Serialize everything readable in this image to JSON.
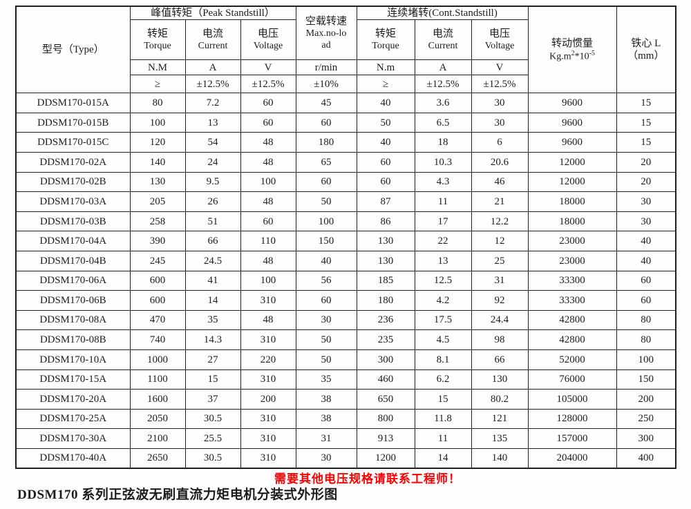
{
  "table": {
    "type_header": "型号（Type）",
    "groups": {
      "peak": "峰值转矩（Peak Standstill）",
      "noload": [
        "空载转速",
        "Max.no-lo",
        "ad"
      ],
      "cont": "连续堵转(Cont.Standstill)",
      "inertia_title": "转动惯量",
      "inertia_unit_parts": [
        "Kg.m",
        "2",
        "*10",
        "-5"
      ],
      "core": [
        "铁心 L",
        "（mm）"
      ]
    },
    "subheaders": {
      "torque": {
        "cn": "转矩",
        "en": "Torque"
      },
      "current": {
        "cn": "电流",
        "en": "Current"
      },
      "voltage": {
        "cn": "电压",
        "en": "Voltage"
      }
    },
    "units": [
      "N.M",
      "A",
      "V",
      "r/min",
      "N.m",
      "A",
      "V"
    ],
    "tolerances": [
      "≥",
      "±12.5%",
      "±12.5%",
      "±10%",
      "≥",
      "±12.5%",
      "±12.5%"
    ],
    "rows": [
      [
        "DDSM170-015A",
        "80",
        "7.2",
        "60",
        "45",
        "40",
        "3.6",
        "30",
        "9600",
        "15"
      ],
      [
        "DDSM170-015B",
        "100",
        "13",
        "60",
        "60",
        "50",
        "6.5",
        "30",
        "9600",
        "15"
      ],
      [
        "DDSM170-015C",
        "120",
        "54",
        "48",
        "180",
        "40",
        "18",
        "6",
        "9600",
        "15"
      ],
      [
        "DDSM170-02A",
        "140",
        "24",
        "48",
        "65",
        "60",
        "10.3",
        "20.6",
        "12000",
        "20"
      ],
      [
        "DDSM170-02B",
        "130",
        "9.5",
        "100",
        "60",
        "60",
        "4.3",
        "46",
        "12000",
        "20"
      ],
      [
        "DDSM170-03A",
        "205",
        "26",
        "48",
        "50",
        "87",
        "11",
        "21",
        "18000",
        "30"
      ],
      [
        "DDSM170-03B",
        "258",
        "51",
        "60",
        "100",
        "86",
        "17",
        "12.2",
        "18000",
        "30"
      ],
      [
        "DDSM170-04A",
        "390",
        "66",
        "110",
        "150",
        "130",
        "22",
        "12",
        "23000",
        "40"
      ],
      [
        "DDSM170-04B",
        "245",
        "24.5",
        "48",
        "40",
        "130",
        "13",
        "25",
        "23000",
        "40"
      ],
      [
        "DDSM170-06A",
        "600",
        "41",
        "100",
        "56",
        "185",
        "12.5",
        "31",
        "33300",
        "60"
      ],
      [
        "DDSM170-06B",
        "600",
        "14",
        "310",
        "60",
        "180",
        "4.2",
        "92",
        "33300",
        "60"
      ],
      [
        "DDSM170-08A",
        "470",
        "35",
        "48",
        "30",
        "236",
        "17.5",
        "24.4",
        "42800",
        "80"
      ],
      [
        "DDSM170-08B",
        "740",
        "14.3",
        "310",
        "50",
        "235",
        "4.5",
        "98",
        "42800",
        "80"
      ],
      [
        "DDSM170-10A",
        "1000",
        "27",
        "220",
        "50",
        "300",
        "8.1",
        "66",
        "52000",
        "100"
      ],
      [
        "DDSM170-15A",
        "1100",
        "15",
        "310",
        "35",
        "460",
        "6.2",
        "130",
        "76000",
        "150"
      ],
      [
        "DDSM170-20A",
        "1600",
        "37",
        "200",
        "38",
        "650",
        "15",
        "80.2",
        "105000",
        "200"
      ],
      [
        "DDSM170-25A",
        "2050",
        "30.5",
        "310",
        "38",
        "800",
        "11.8",
        "121",
        "128000",
        "250"
      ],
      [
        "DDSM170-30A",
        "2100",
        "25.5",
        "310",
        "31",
        "913",
        "11",
        "135",
        "157000",
        "300"
      ],
      [
        "DDSM170-40A",
        "2650",
        "30.5",
        "310",
        "30",
        "1200",
        "14",
        "140",
        "204000",
        "400"
      ]
    ]
  },
  "footer": {
    "notice": "需要其他电压规格请联系工程师！",
    "notice_color": "#ff0000",
    "caption": "DDSM170 系列正弦波无刷直流力矩电机分装式外形图"
  }
}
